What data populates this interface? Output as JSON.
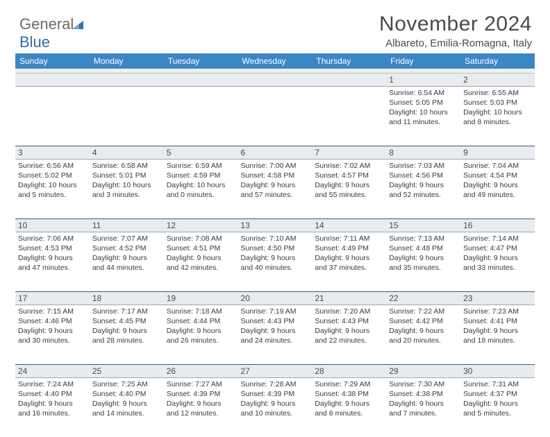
{
  "logo": {
    "text_general": "General",
    "text_blue": "Blue"
  },
  "header": {
    "month_title": "November 2024",
    "location": "Albareto, Emilia-Romagna, Italy"
  },
  "colors": {
    "header_bg": "#3b86c6",
    "header_text": "#ffffff",
    "daynum_bg": "#e9ecef",
    "border_dark": "#3b5a78",
    "text": "#3a3a3a",
    "logo_gray": "#6a6a6a",
    "logo_blue": "#2f6fa7"
  },
  "day_headers": [
    "Sunday",
    "Monday",
    "Tuesday",
    "Wednesday",
    "Thursday",
    "Friday",
    "Saturday"
  ],
  "weeks": [
    [
      null,
      null,
      null,
      null,
      null,
      {
        "n": "1",
        "sr": "Sunrise: 6:54 AM",
        "ss": "Sunset: 5:05 PM",
        "d1": "Daylight: 10 hours",
        "d2": "and 11 minutes."
      },
      {
        "n": "2",
        "sr": "Sunrise: 6:55 AM",
        "ss": "Sunset: 5:03 PM",
        "d1": "Daylight: 10 hours",
        "d2": "and 8 minutes."
      }
    ],
    [
      {
        "n": "3",
        "sr": "Sunrise: 6:56 AM",
        "ss": "Sunset: 5:02 PM",
        "d1": "Daylight: 10 hours",
        "d2": "and 5 minutes."
      },
      {
        "n": "4",
        "sr": "Sunrise: 6:58 AM",
        "ss": "Sunset: 5:01 PM",
        "d1": "Daylight: 10 hours",
        "d2": "and 3 minutes."
      },
      {
        "n": "5",
        "sr": "Sunrise: 6:59 AM",
        "ss": "Sunset: 4:59 PM",
        "d1": "Daylight: 10 hours",
        "d2": "and 0 minutes."
      },
      {
        "n": "6",
        "sr": "Sunrise: 7:00 AM",
        "ss": "Sunset: 4:58 PM",
        "d1": "Daylight: 9 hours",
        "d2": "and 57 minutes."
      },
      {
        "n": "7",
        "sr": "Sunrise: 7:02 AM",
        "ss": "Sunset: 4:57 PM",
        "d1": "Daylight: 9 hours",
        "d2": "and 55 minutes."
      },
      {
        "n": "8",
        "sr": "Sunrise: 7:03 AM",
        "ss": "Sunset: 4:56 PM",
        "d1": "Daylight: 9 hours",
        "d2": "and 52 minutes."
      },
      {
        "n": "9",
        "sr": "Sunrise: 7:04 AM",
        "ss": "Sunset: 4:54 PM",
        "d1": "Daylight: 9 hours",
        "d2": "and 49 minutes."
      }
    ],
    [
      {
        "n": "10",
        "sr": "Sunrise: 7:06 AM",
        "ss": "Sunset: 4:53 PM",
        "d1": "Daylight: 9 hours",
        "d2": "and 47 minutes."
      },
      {
        "n": "11",
        "sr": "Sunrise: 7:07 AM",
        "ss": "Sunset: 4:52 PM",
        "d1": "Daylight: 9 hours",
        "d2": "and 44 minutes."
      },
      {
        "n": "12",
        "sr": "Sunrise: 7:08 AM",
        "ss": "Sunset: 4:51 PM",
        "d1": "Daylight: 9 hours",
        "d2": "and 42 minutes."
      },
      {
        "n": "13",
        "sr": "Sunrise: 7:10 AM",
        "ss": "Sunset: 4:50 PM",
        "d1": "Daylight: 9 hours",
        "d2": "and 40 minutes."
      },
      {
        "n": "14",
        "sr": "Sunrise: 7:11 AM",
        "ss": "Sunset: 4:49 PM",
        "d1": "Daylight: 9 hours",
        "d2": "and 37 minutes."
      },
      {
        "n": "15",
        "sr": "Sunrise: 7:13 AM",
        "ss": "Sunset: 4:48 PM",
        "d1": "Daylight: 9 hours",
        "d2": "and 35 minutes."
      },
      {
        "n": "16",
        "sr": "Sunrise: 7:14 AM",
        "ss": "Sunset: 4:47 PM",
        "d1": "Daylight: 9 hours",
        "d2": "and 33 minutes."
      }
    ],
    [
      {
        "n": "17",
        "sr": "Sunrise: 7:15 AM",
        "ss": "Sunset: 4:46 PM",
        "d1": "Daylight: 9 hours",
        "d2": "and 30 minutes."
      },
      {
        "n": "18",
        "sr": "Sunrise: 7:17 AM",
        "ss": "Sunset: 4:45 PM",
        "d1": "Daylight: 9 hours",
        "d2": "and 28 minutes."
      },
      {
        "n": "19",
        "sr": "Sunrise: 7:18 AM",
        "ss": "Sunset: 4:44 PM",
        "d1": "Daylight: 9 hours",
        "d2": "and 26 minutes."
      },
      {
        "n": "20",
        "sr": "Sunrise: 7:19 AM",
        "ss": "Sunset: 4:43 PM",
        "d1": "Daylight: 9 hours",
        "d2": "and 24 minutes."
      },
      {
        "n": "21",
        "sr": "Sunrise: 7:20 AM",
        "ss": "Sunset: 4:43 PM",
        "d1": "Daylight: 9 hours",
        "d2": "and 22 minutes."
      },
      {
        "n": "22",
        "sr": "Sunrise: 7:22 AM",
        "ss": "Sunset: 4:42 PM",
        "d1": "Daylight: 9 hours",
        "d2": "and 20 minutes."
      },
      {
        "n": "23",
        "sr": "Sunrise: 7:23 AM",
        "ss": "Sunset: 4:41 PM",
        "d1": "Daylight: 9 hours",
        "d2": "and 18 minutes."
      }
    ],
    [
      {
        "n": "24",
        "sr": "Sunrise: 7:24 AM",
        "ss": "Sunset: 4:40 PM",
        "d1": "Daylight: 9 hours",
        "d2": "and 16 minutes."
      },
      {
        "n": "25",
        "sr": "Sunrise: 7:25 AM",
        "ss": "Sunset: 4:40 PM",
        "d1": "Daylight: 9 hours",
        "d2": "and 14 minutes."
      },
      {
        "n": "26",
        "sr": "Sunrise: 7:27 AM",
        "ss": "Sunset: 4:39 PM",
        "d1": "Daylight: 9 hours",
        "d2": "and 12 minutes."
      },
      {
        "n": "27",
        "sr": "Sunrise: 7:28 AM",
        "ss": "Sunset: 4:39 PM",
        "d1": "Daylight: 9 hours",
        "d2": "and 10 minutes."
      },
      {
        "n": "28",
        "sr": "Sunrise: 7:29 AM",
        "ss": "Sunset: 4:38 PM",
        "d1": "Daylight: 9 hours",
        "d2": "and 8 minutes."
      },
      {
        "n": "29",
        "sr": "Sunrise: 7:30 AM",
        "ss": "Sunset: 4:38 PM",
        "d1": "Daylight: 9 hours",
        "d2": "and 7 minutes."
      },
      {
        "n": "30",
        "sr": "Sunrise: 7:31 AM",
        "ss": "Sunset: 4:37 PM",
        "d1": "Daylight: 9 hours",
        "d2": "and 5 minutes."
      }
    ]
  ]
}
